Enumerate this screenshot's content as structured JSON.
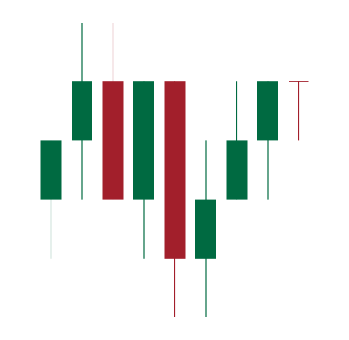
{
  "colors": {
    "bull": "#006a41",
    "bear": "#a21f2b",
    "background": "#ffffff"
  },
  "chart_data": {
    "type": "candlestick",
    "title": "",
    "xlabel": "",
    "ylabel": "",
    "ylim": [
      0,
      5
    ],
    "grid": false,
    "legend": "none",
    "candles": [
      {
        "index": 0,
        "open": 2,
        "close": 3,
        "high": 3,
        "low": 1,
        "direction": "up"
      },
      {
        "index": 1,
        "open": 3,
        "close": 4,
        "high": 5,
        "low": 2,
        "direction": "up"
      },
      {
        "index": 2,
        "open": 4,
        "close": 2,
        "high": 5,
        "low": 2,
        "direction": "down"
      },
      {
        "index": 3,
        "open": 2,
        "close": 4,
        "high": 4,
        "low": 1,
        "direction": "up"
      },
      {
        "index": 4,
        "open": 4,
        "close": 1,
        "high": 4,
        "low": 0,
        "direction": "down"
      },
      {
        "index": 5,
        "open": 1,
        "close": 2,
        "high": 3,
        "low": 0,
        "direction": "up"
      },
      {
        "index": 6,
        "open": 2,
        "close": 3,
        "high": 4,
        "low": 2,
        "direction": "up"
      },
      {
        "index": 7,
        "open": 3,
        "close": 4,
        "high": 4,
        "low": 2,
        "direction": "up"
      },
      {
        "index": 8,
        "open": 4,
        "close": 4,
        "high": 4,
        "low": 3,
        "direction": "down"
      }
    ]
  }
}
